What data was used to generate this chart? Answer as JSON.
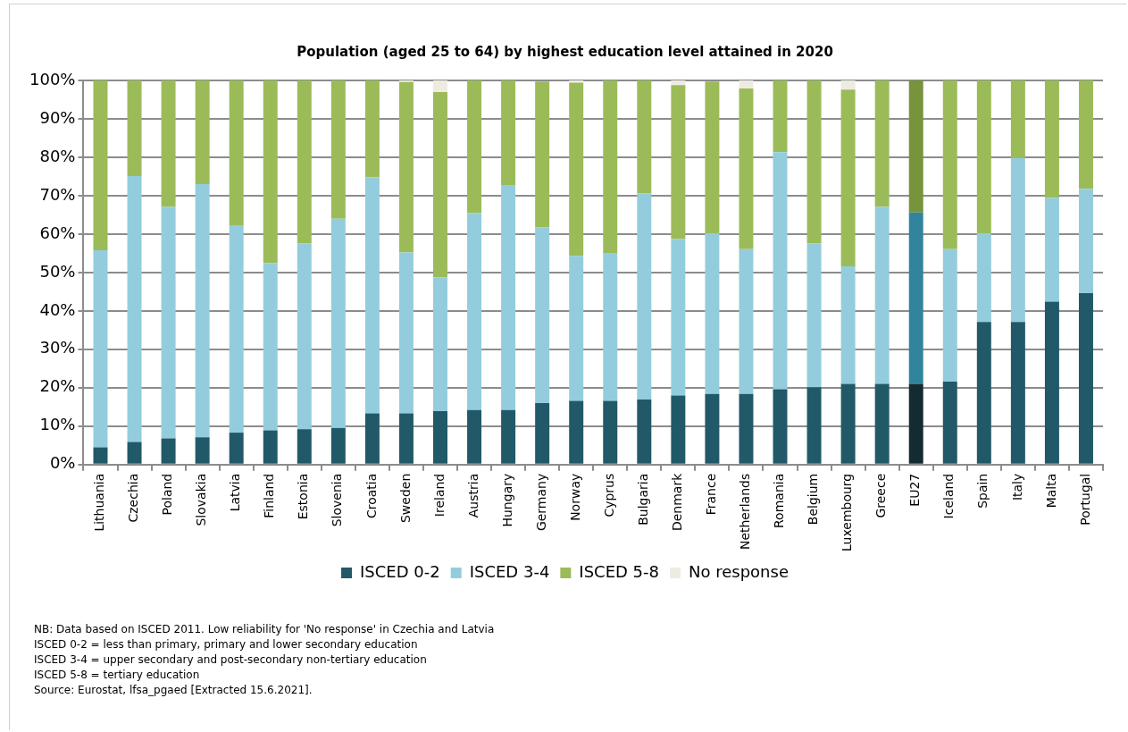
{
  "chart_data": {
    "type": "bar",
    "stacked": true,
    "title": "Population (aged 25 to 64) by highest education level attained in 2020",
    "categories": [
      "Lithuania",
      "Czechia",
      "Poland",
      "Slovakia",
      "Latvia",
      "Finland",
      "Estonia",
      "Slovenia",
      "Croatia",
      "Sweden",
      "Ireland",
      "Austria",
      "Hungary",
      "Germany",
      "Norway",
      "Cyprus",
      "Bulgaria",
      "Denmark",
      "France",
      "Netherlands",
      "Romania",
      "Belgium",
      "Luxembourg",
      "Greece",
      "EU27",
      "Iceland",
      "Spain",
      "Italy",
      "Malta",
      "Portugal"
    ],
    "series": [
      {
        "name": "ISCED 0-2",
        "color": "#215968",
        "colors": [
          "#215968",
          "#215968",
          "#215968",
          "#215968",
          "#215968",
          "#215968",
          "#215968",
          "#215968",
          "#215968",
          "#215968",
          "#215968",
          "#215968",
          "#215968",
          "#215968",
          "#215968",
          "#215968",
          "#215968",
          "#215968",
          "#215968",
          "#215968",
          "#215968",
          "#215968",
          "#215968",
          "#215968",
          "#132b31",
          "#215968",
          "#215968",
          "#215968",
          "#215968",
          "#215968"
        ],
        "values": [
          4.5,
          5.9,
          6.8,
          7.1,
          8.3,
          8.9,
          9.2,
          9.5,
          13.3,
          13.3,
          13.9,
          14.2,
          14.2,
          16.0,
          16.6,
          16.6,
          16.9,
          18.0,
          18.4,
          18.4,
          19.6,
          20.1,
          21.0,
          21.0,
          21.0,
          21.6,
          37.1,
          37.1,
          42.4,
          44.6
        ]
      },
      {
        "name": "ISCED 3-4",
        "color": "#93cddd",
        "colors": [
          "#93cddd",
          "#93cddd",
          "#93cddd",
          "#93cddd",
          "#93cddd",
          "#93cddd",
          "#93cddd",
          "#93cddd",
          "#93cddd",
          "#93cddd",
          "#93cddd",
          "#93cddd",
          "#93cddd",
          "#93cddd",
          "#93cddd",
          "#93cddd",
          "#93cddd",
          "#93cddd",
          "#93cddd",
          "#93cddd",
          "#93cddd",
          "#93cddd",
          "#93cddd",
          "#93cddd",
          "#31849b",
          "#93cddd",
          "#93cddd",
          "#93cddd",
          "#93cddd",
          "#93cddd"
        ],
        "values": [
          51.3,
          69.2,
          60.3,
          65.9,
          53.8,
          43.6,
          48.4,
          54.5,
          61.5,
          41.9,
          34.8,
          51.3,
          58.4,
          45.7,
          37.7,
          38.3,
          53.7,
          40.7,
          41.8,
          37.7,
          61.7,
          37.5,
          30.6,
          46.1,
          44.6,
          34.5,
          23.1,
          42.7,
          27.0,
          27.2
        ]
      },
      {
        "name": "ISCED 5-8",
        "color": "#9bbb59",
        "colors": [
          "#9bbb59",
          "#9bbb59",
          "#9bbb59",
          "#9bbb59",
          "#9bbb59",
          "#9bbb59",
          "#9bbb59",
          "#9bbb59",
          "#9bbb59",
          "#9bbb59",
          "#9bbb59",
          "#9bbb59",
          "#9bbb59",
          "#9bbb59",
          "#9bbb59",
          "#9bbb59",
          "#9bbb59",
          "#9bbb59",
          "#9bbb59",
          "#9bbb59",
          "#9bbb59",
          "#9bbb59",
          "#9bbb59",
          "#9bbb59",
          "#77933c",
          "#9bbb59",
          "#9bbb59",
          "#9bbb59",
          "#9bbb59",
          "#9bbb59"
        ],
        "values": [
          44.2,
          24.9,
          32.9,
          27.0,
          37.9,
          47.5,
          42.4,
          36.0,
          25.2,
          44.4,
          48.3,
          34.5,
          27.4,
          38.0,
          45.1,
          45.1,
          29.4,
          40.1,
          39.5,
          41.8,
          18.7,
          42.4,
          46.0,
          32.9,
          34.4,
          43.9,
          39.8,
          20.2,
          30.6,
          28.2
        ]
      },
      {
        "name": "No response",
        "color": "#eeece1",
        "values": [
          null,
          null,
          null,
          null,
          null,
          null,
          null,
          null,
          null,
          0.4,
          3.0,
          null,
          null,
          null,
          0.6,
          null,
          null,
          1.2,
          null,
          2.1,
          null,
          null,
          2.4,
          null,
          null,
          null,
          null,
          null,
          null,
          null
        ]
      }
    ],
    "ylim": [
      0,
      100
    ],
    "yticks": [
      {
        "value": 0,
        "label": "0%"
      },
      {
        "value": 10,
        "label": "10%"
      },
      {
        "value": 20,
        "label": "20%"
      },
      {
        "value": 30,
        "label": "30%"
      },
      {
        "value": 40,
        "label": "40%"
      },
      {
        "value": 50,
        "label": "50%"
      },
      {
        "value": 60,
        "label": "60%"
      },
      {
        "value": 70,
        "label": "70%"
      },
      {
        "value": 80,
        "label": "80%"
      },
      {
        "value": 90,
        "label": "90%"
      },
      {
        "value": 100,
        "label": "100%"
      }
    ],
    "grid": "y",
    "legend": "bottom",
    "annotations": [
      "NB: Data based on ISCED 2011. Low reliability for 'No response' in Czechia and Latvia",
      "ISCED 0-2 = less than primary, primary and lower secondary education",
      "ISCED 3-4 = upper secondary and post-secondary non-tertiary education",
      "ISCED 5-8 = tertiary education",
      "Source: Eurostat, lfsa_pgaed [Extracted 15.6.2021]."
    ]
  }
}
